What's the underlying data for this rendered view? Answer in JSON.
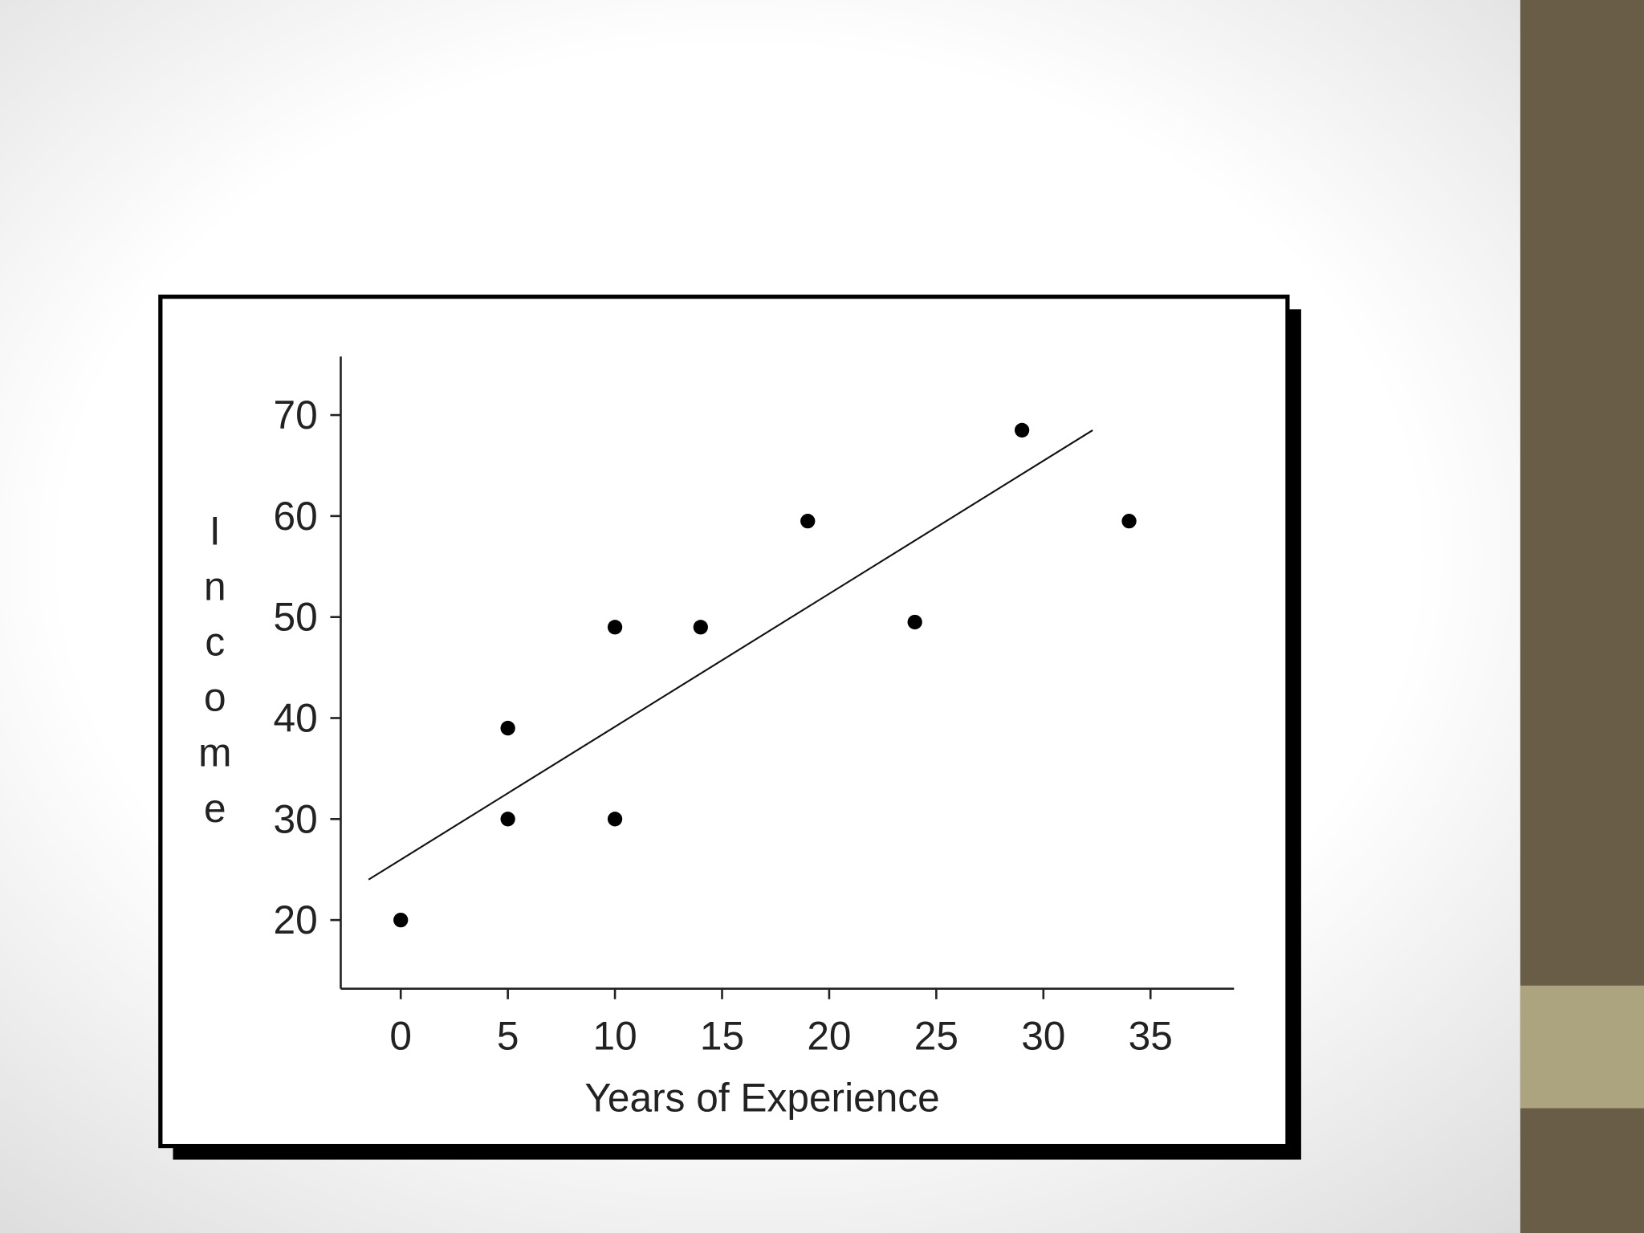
{
  "chart_data": {
    "type": "scatter",
    "xlabel": "Years of Experience",
    "ylabel": "Income",
    "x": [
      0,
      5,
      5,
      10,
      10,
      14,
      19,
      24,
      29,
      34
    ],
    "values": [
      20,
      39,
      30,
      49,
      30,
      49,
      59.5,
      49.5,
      68.5,
      59.5
    ],
    "color": "#000000",
    "trend_line": {
      "x": [
        -1.5,
        32.3
      ],
      "y": [
        24,
        68.5
      ]
    },
    "xlim": [
      -2.8,
      38.9
    ],
    "ylim": [
      13.2,
      75.8
    ],
    "xticks": [
      0,
      5,
      10,
      15,
      20,
      25,
      30,
      35
    ],
    "yticks": [
      20,
      30,
      40,
      50,
      60,
      70
    ]
  }
}
